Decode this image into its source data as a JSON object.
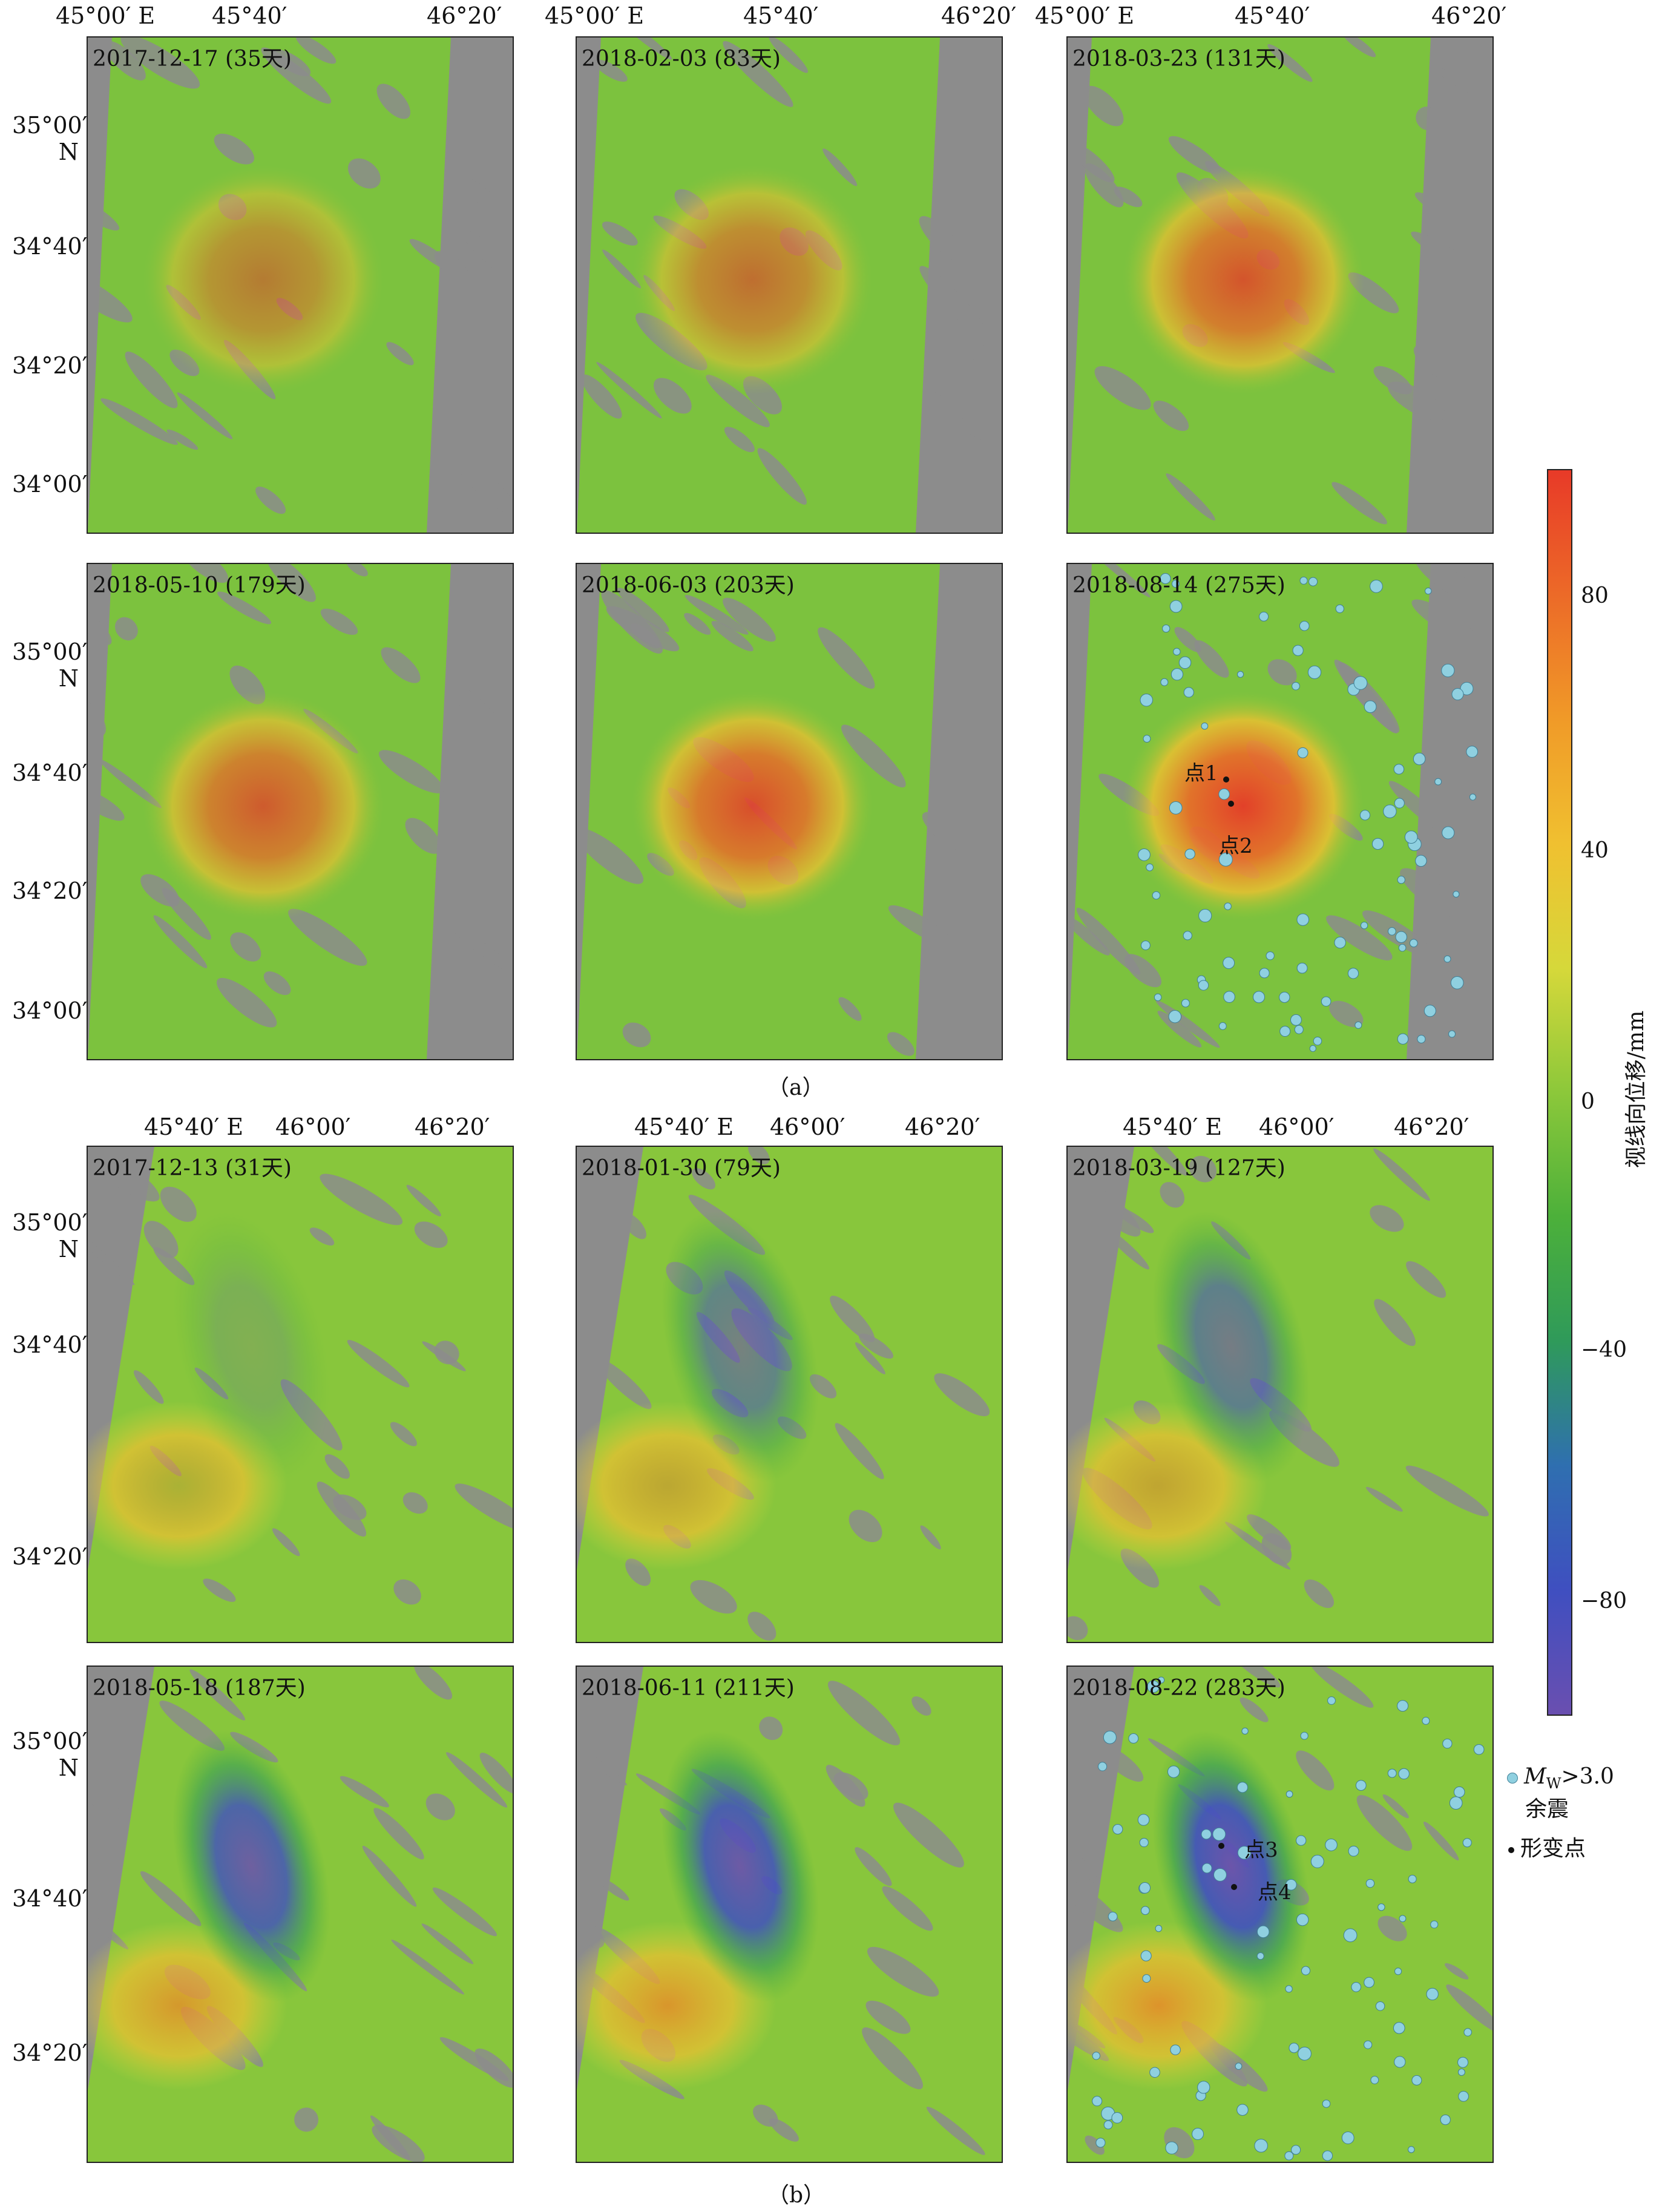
{
  "section_a": {
    "label": "（a）"
  },
  "section_b": {
    "label": "（b）"
  },
  "panels_a": [
    {
      "label": "2017-12-17 (35天)",
      "intensity": 0.55
    },
    {
      "label": "2018-02-03 (83天)",
      "intensity": 0.65
    },
    {
      "label": "2018-03-23 (131天)",
      "intensity": 0.85
    },
    {
      "label": "2018-05-10 (179天)",
      "intensity": 0.8
    },
    {
      "label": "2018-06-03 (203天)",
      "intensity": 0.9
    },
    {
      "label": "2018-08-14 (275天)",
      "intensity": 1.0
    }
  ],
  "panels_b": [
    {
      "label": "2017-12-13 (31天)",
      "intensity": 0.2
    },
    {
      "label": "2018-01-30 (79天)",
      "intensity": 0.6
    },
    {
      "label": "2018-03-19 (127天)",
      "intensity": 0.65
    },
    {
      "label": "2018-05-18 (187天)",
      "intensity": 0.9
    },
    {
      "label": "2018-06-11 (211天)",
      "intensity": 0.95
    },
    {
      "label": "2018-08-22 (283天)",
      "intensity": 1.0
    }
  ],
  "axes_a": {
    "lon_ticks": [
      "45°00′ E",
      "45°40′",
      "46°20′"
    ],
    "lat_ticks": [
      "35°00′",
      "34°40′",
      "34°20′",
      "34°00′"
    ],
    "lat_unit": "N"
  },
  "axes_b": {
    "lon_ticks": [
      "45°40′ E",
      "46°00′",
      "46°20′"
    ],
    "lat_ticks": [
      "35°00′",
      "34°40′",
      "34°20′"
    ],
    "lat_unit": "N"
  },
  "points": {
    "p1": "点1",
    "p2": "点2",
    "p3": "点3",
    "p4": "点4"
  },
  "colorbar": {
    "title": "视线向位移/mm",
    "ticks": [
      "80",
      "40",
      "0",
      "−40",
      "−80"
    ],
    "range": [
      -100,
      100
    ],
    "colors": [
      "#6a4fb0",
      "#3f4fc0",
      "#2f6fb0",
      "#2f9a5a",
      "#4cb03a",
      "#8cc83a",
      "#d6d83a",
      "#f0c030",
      "#f09a28",
      "#ec6a28",
      "#e83a28"
    ]
  },
  "legend": {
    "aftershock_symbol": "M",
    "aftershock_subscript": "W",
    "aftershock_threshold": ">3.0",
    "aftershock_label": "余震",
    "deform_label": "形变点",
    "aftershock_color": "#8fd0e0",
    "deform_color": "#111111"
  }
}
